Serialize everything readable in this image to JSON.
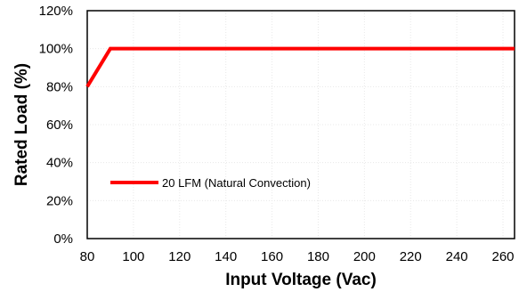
{
  "chart_data": {
    "type": "line",
    "title": "",
    "xlabel": "Input Voltage (Vac)",
    "ylabel": "Rated Load (%)",
    "xlim": [
      80,
      265
    ],
    "ylim": [
      0,
      120
    ],
    "x_ticks": [
      "80",
      "100",
      "120",
      "140",
      "160",
      "180",
      "200",
      "220",
      "240",
      "260"
    ],
    "y_ticks": [
      "0%",
      "20%",
      "40%",
      "60%",
      "80%",
      "100%",
      "120%"
    ],
    "grid": true,
    "legend_position": "lower-left",
    "series": [
      {
        "name": "20 LFM (Natural Convection)",
        "color": "#ff0000",
        "x": [
          80,
          90,
          265
        ],
        "y": [
          80,
          100,
          100
        ]
      }
    ]
  }
}
